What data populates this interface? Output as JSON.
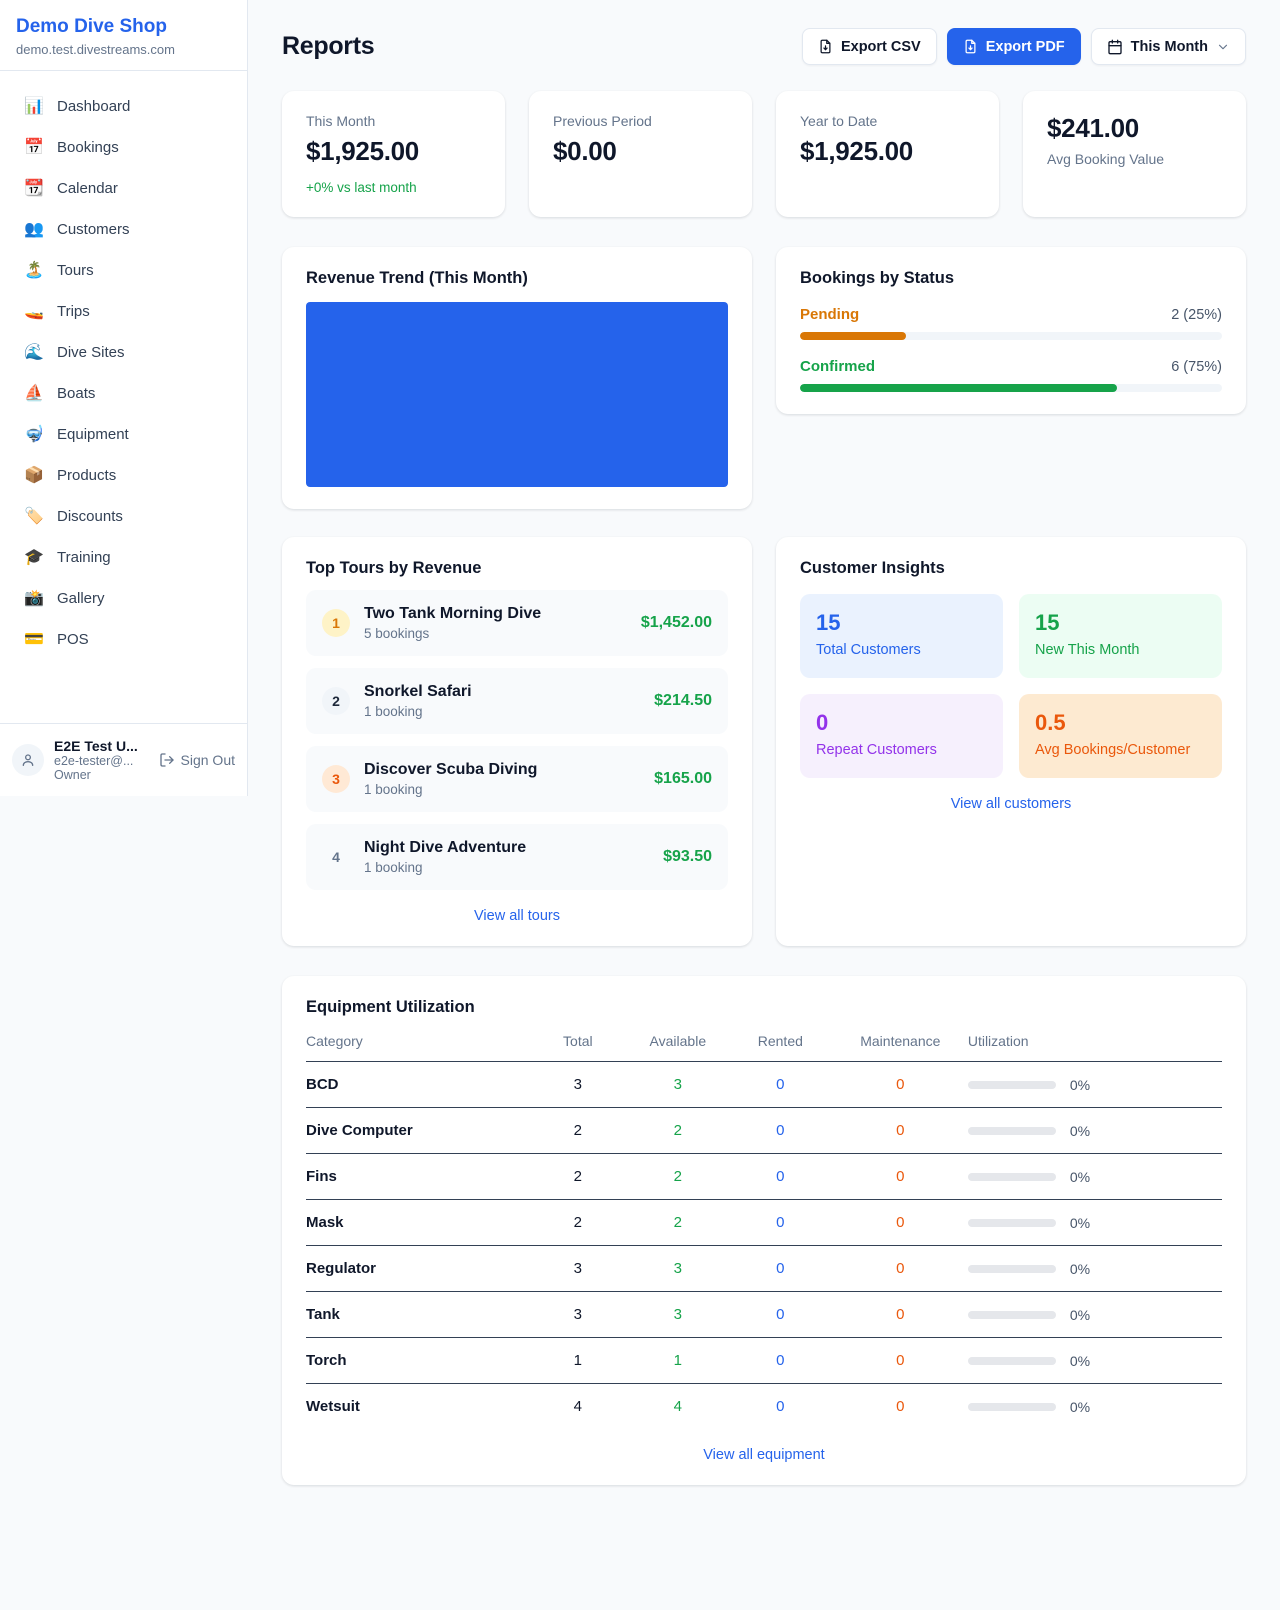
{
  "sidebar": {
    "brand": {
      "name": "Demo Dive Shop",
      "domain": "demo.test.divestreams.com"
    },
    "nav": [
      {
        "icon": "📊",
        "icon_name": "dashboard-icon",
        "label": "Dashboard"
      },
      {
        "icon": "📅",
        "icon_name": "bookings-icon",
        "label": "Bookings"
      },
      {
        "icon": "📆",
        "icon_name": "calendar-icon",
        "label": "Calendar"
      },
      {
        "icon": "👥",
        "icon_name": "customers-icon",
        "label": "Customers"
      },
      {
        "icon": "🏝️",
        "icon_name": "tours-icon",
        "label": "Tours"
      },
      {
        "icon": "🚤",
        "icon_name": "trips-icon",
        "label": "Trips"
      },
      {
        "icon": "🌊",
        "icon_name": "dive-sites-icon",
        "label": "Dive Sites"
      },
      {
        "icon": "⛵",
        "icon_name": "boats-icon",
        "label": "Boats"
      },
      {
        "icon": "🤿",
        "icon_name": "equipment-icon",
        "label": "Equipment"
      },
      {
        "icon": "📦",
        "icon_name": "products-icon",
        "label": "Products"
      },
      {
        "icon": "🏷️",
        "icon_name": "discounts-icon",
        "label": "Discounts"
      },
      {
        "icon": "🎓",
        "icon_name": "training-icon",
        "label": "Training"
      },
      {
        "icon": "📸",
        "icon_name": "gallery-icon",
        "label": "Gallery"
      },
      {
        "icon": "💳",
        "icon_name": "pos-icon",
        "label": "POS"
      }
    ],
    "user": {
      "name": "E2E Test U...",
      "email": "e2e-tester@...",
      "role": "Owner",
      "sign_out": "Sign Out"
    }
  },
  "header": {
    "title": "Reports",
    "export_csv_label": "Export CSV",
    "export_pdf_label": "Export PDF",
    "period_label": "This Month"
  },
  "stats": {
    "this_month": {
      "label": "This Month",
      "value": "$1,925.00",
      "delta": "+0% vs last month"
    },
    "previous_period": {
      "label": "Previous Period",
      "value": "$0.00"
    },
    "year_to_date": {
      "label": "Year to Date",
      "value": "$1,925.00"
    },
    "avg_booking": {
      "value": "$241.00",
      "label": "Avg Booking Value"
    }
  },
  "revenue_trend": {
    "title": "Revenue Trend (This Month)",
    "fill_color": "#2563eb"
  },
  "bookings_by_status": {
    "title": "Bookings by Status",
    "items": [
      {
        "label": "Pending",
        "count": "2 (25%)",
        "percent": 25,
        "color": "#d97706"
      },
      {
        "label": "Confirmed",
        "count": "6 (75%)",
        "percent": 75,
        "color": "#16a34a"
      }
    ]
  },
  "top_tours": {
    "title": "Top Tours by Revenue",
    "view_all": "View all tours",
    "items": [
      {
        "rank": "1",
        "name": "Two Tank Morning Dive",
        "bookings": "5 bookings",
        "revenue": "$1,452.00",
        "badge_bg": "#fef3c7",
        "badge_color": "#d97706"
      },
      {
        "rank": "2",
        "name": "Snorkel Safari",
        "bookings": "1 booking",
        "revenue": "$214.50",
        "badge_bg": "#f1f5f9",
        "badge_color": "#1e293b"
      },
      {
        "rank": "3",
        "name": "Discover Scuba Diving",
        "bookings": "1 booking",
        "revenue": "$165.00",
        "badge_bg": "#ffe9d5",
        "badge_color": "#ea580c"
      },
      {
        "rank": "4",
        "name": "Night Dive Adventure",
        "bookings": "1 booking",
        "revenue": "$93.50",
        "badge_bg": "transparent",
        "badge_color": "#64748b"
      }
    ]
  },
  "customer_insights": {
    "title": "Customer Insights",
    "view_all": "View all customers",
    "tiles": [
      {
        "value": "15",
        "label": "Total Customers",
        "color": "#2563eb",
        "bg": "#eaf2fe"
      },
      {
        "value": "15",
        "label": "New This Month",
        "color": "#16a34a",
        "bg": "#ecfdf3"
      },
      {
        "value": "0",
        "label": "Repeat Customers",
        "color": "#9333ea",
        "bg": "#f6f0fd"
      },
      {
        "value": "0.5",
        "label": "Avg Bookings/Customer",
        "color": "#ea580c",
        "bg": "#fdead1"
      }
    ]
  },
  "equipment": {
    "title": "Equipment Utilization",
    "view_all": "View all equipment",
    "columns": [
      "Category",
      "Total",
      "Available",
      "Rented",
      "Maintenance",
      "Utilization"
    ],
    "value_colors": {
      "total": "#0f172a",
      "available": "#16a34a",
      "rented": "#2563eb",
      "maintenance": "#ea580c"
    },
    "rows": [
      {
        "category": "BCD",
        "total": "3",
        "available": "3",
        "rented": "0",
        "maintenance": "0",
        "utilization_pct": 0,
        "utilization": "0%"
      },
      {
        "category": "Dive Computer",
        "total": "2",
        "available": "2",
        "rented": "0",
        "maintenance": "0",
        "utilization_pct": 0,
        "utilization": "0%"
      },
      {
        "category": "Fins",
        "total": "2",
        "available": "2",
        "rented": "0",
        "maintenance": "0",
        "utilization_pct": 0,
        "utilization": "0%"
      },
      {
        "category": "Mask",
        "total": "2",
        "available": "2",
        "rented": "0",
        "maintenance": "0",
        "utilization_pct": 0,
        "utilization": "0%"
      },
      {
        "category": "Regulator",
        "total": "3",
        "available": "3",
        "rented": "0",
        "maintenance": "0",
        "utilization_pct": 0,
        "utilization": "0%"
      },
      {
        "category": "Tank",
        "total": "3",
        "available": "3",
        "rented": "0",
        "maintenance": "0",
        "utilization_pct": 0,
        "utilization": "0%"
      },
      {
        "category": "Torch",
        "total": "1",
        "available": "1",
        "rented": "0",
        "maintenance": "0",
        "utilization_pct": 0,
        "utilization": "0%"
      },
      {
        "category": "Wetsuit",
        "total": "4",
        "available": "4",
        "rented": "0",
        "maintenance": "0",
        "utilization_pct": 0,
        "utilization": "0%"
      }
    ]
  }
}
